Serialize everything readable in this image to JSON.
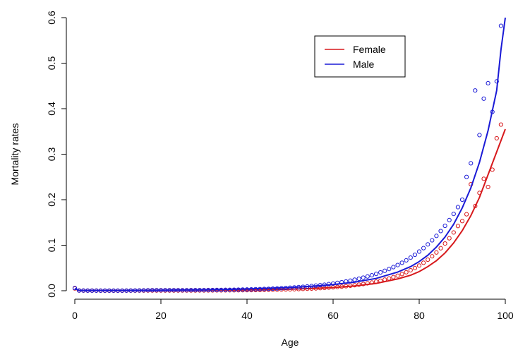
{
  "chart_data": {
    "type": "scatter",
    "xlabel": "Age",
    "ylabel": "Mortality rates",
    "xlim": [
      0,
      100
    ],
    "ylim": [
      0,
      0.6
    ],
    "xticks": [
      0,
      20,
      40,
      60,
      80,
      100
    ],
    "yticks": [
      0.0,
      0.1,
      0.2,
      0.3,
      0.4,
      0.5,
      0.6
    ],
    "ytick_labels": [
      "0.0",
      "0.1",
      "0.2",
      "0.3",
      "0.4",
      "0.5",
      "0.6"
    ],
    "legend_position": "top-right",
    "series": [
      {
        "name": "Female",
        "color": "#d7191c",
        "points": [
          [
            0,
            0.005
          ],
          [
            1,
            0.0004
          ],
          [
            2,
            0.0003
          ],
          [
            3,
            0.0002
          ],
          [
            4,
            0.0002
          ],
          [
            5,
            0.0002
          ],
          [
            6,
            0.0001
          ],
          [
            7,
            0.0001
          ],
          [
            8,
            0.0001
          ],
          [
            9,
            0.0001
          ],
          [
            10,
            0.0001
          ],
          [
            11,
            0.0001
          ],
          [
            12,
            0.0002
          ],
          [
            13,
            0.0002
          ],
          [
            14,
            0.0002
          ],
          [
            15,
            0.0003
          ],
          [
            16,
            0.0003
          ],
          [
            17,
            0.0004
          ],
          [
            18,
            0.0004
          ],
          [
            19,
            0.0004
          ],
          [
            20,
            0.0004
          ],
          [
            21,
            0.0004
          ],
          [
            22,
            0.0004
          ],
          [
            23,
            0.0004
          ],
          [
            24,
            0.0004
          ],
          [
            25,
            0.0005
          ],
          [
            26,
            0.0005
          ],
          [
            27,
            0.0005
          ],
          [
            28,
            0.0005
          ],
          [
            29,
            0.0006
          ],
          [
            30,
            0.0006
          ],
          [
            31,
            0.0007
          ],
          [
            32,
            0.0007
          ],
          [
            33,
            0.0008
          ],
          [
            34,
            0.0008
          ],
          [
            35,
            0.0009
          ],
          [
            36,
            0.001
          ],
          [
            37,
            0.001
          ],
          [
            38,
            0.0011
          ],
          [
            39,
            0.0012
          ],
          [
            40,
            0.0013
          ],
          [
            41,
            0.0014
          ],
          [
            42,
            0.0015
          ],
          [
            43,
            0.0017
          ],
          [
            44,
            0.0018
          ],
          [
            45,
            0.002
          ],
          [
            46,
            0.0022
          ],
          [
            47,
            0.0024
          ],
          [
            48,
            0.0026
          ],
          [
            49,
            0.0028
          ],
          [
            50,
            0.003
          ],
          [
            51,
            0.0033
          ],
          [
            52,
            0.0036
          ],
          [
            53,
            0.004
          ],
          [
            54,
            0.0044
          ],
          [
            55,
            0.0048
          ],
          [
            56,
            0.0052
          ],
          [
            57,
            0.0057
          ],
          [
            58,
            0.0062
          ],
          [
            59,
            0.0068
          ],
          [
            60,
            0.0075
          ],
          [
            61,
            0.0082
          ],
          [
            62,
            0.009
          ],
          [
            63,
            0.0099
          ],
          [
            64,
            0.011
          ],
          [
            65,
            0.0121
          ],
          [
            66,
            0.0134
          ],
          [
            67,
            0.0147
          ],
          [
            68,
            0.0163
          ],
          [
            69,
            0.018
          ],
          [
            70,
            0.0199
          ],
          [
            71,
            0.022
          ],
          [
            72,
            0.0244
          ],
          [
            73,
            0.027
          ],
          [
            74,
            0.0299
          ],
          [
            75,
            0.033
          ],
          [
            76,
            0.0366
          ],
          [
            77,
            0.0406
          ],
          [
            78,
            0.045
          ],
          [
            79,
            0.0499
          ],
          [
            80,
            0.0553
          ],
          [
            81,
            0.0614
          ],
          [
            82,
            0.0682
          ],
          [
            83,
            0.0757
          ],
          [
            84,
            0.0841
          ],
          [
            85,
            0.0934
          ],
          [
            86,
            0.1037
          ],
          [
            87,
            0.1153
          ],
          [
            88,
            0.128
          ],
          [
            89,
            0.1422
          ],
          [
            90,
            0.153
          ],
          [
            91,
            0.168
          ],
          [
            92,
            0.234
          ],
          [
            93,
            0.186
          ],
          [
            94,
            0.215
          ],
          [
            95,
            0.246
          ],
          [
            96,
            0.228
          ],
          [
            97,
            0.266
          ],
          [
            98,
            0.335
          ],
          [
            99,
            0.365
          ]
        ],
        "fit": [
          [
            0,
            0.004
          ],
          [
            1,
            0.0006
          ],
          [
            5,
            0.0003
          ],
          [
            10,
            0.0003
          ],
          [
            20,
            0.0006
          ],
          [
            30,
            0.001
          ],
          [
            40,
            0.0018
          ],
          [
            50,
            0.0035
          ],
          [
            55,
            0.0049
          ],
          [
            60,
            0.007
          ],
          [
            65,
            0.0105
          ],
          [
            70,
            0.016
          ],
          [
            75,
            0.026
          ],
          [
            78,
            0.034
          ],
          [
            80,
            0.042
          ],
          [
            82,
            0.053
          ],
          [
            84,
            0.066
          ],
          [
            86,
            0.083
          ],
          [
            88,
            0.105
          ],
          [
            90,
            0.132
          ],
          [
            92,
            0.165
          ],
          [
            94,
            0.205
          ],
          [
            96,
            0.255
          ],
          [
            98,
            0.305
          ],
          [
            100,
            0.355
          ]
        ]
      },
      {
        "name": "Male",
        "color": "#1a1ad6",
        "points": [
          [
            0,
            0.006
          ],
          [
            1,
            0.0005
          ],
          [
            2,
            0.0004
          ],
          [
            3,
            0.0003
          ],
          [
            4,
            0.0002
          ],
          [
            5,
            0.0002
          ],
          [
            6,
            0.0002
          ],
          [
            7,
            0.0002
          ],
          [
            8,
            0.0002
          ],
          [
            9,
            0.0002
          ],
          [
            10,
            0.0002
          ],
          [
            11,
            0.0002
          ],
          [
            12,
            0.0003
          ],
          [
            13,
            0.0004
          ],
          [
            14,
            0.0005
          ],
          [
            15,
            0.0007
          ],
          [
            16,
            0.0009
          ],
          [
            17,
            0.0011
          ],
          [
            18,
            0.0012
          ],
          [
            19,
            0.0012
          ],
          [
            20,
            0.0012
          ],
          [
            21,
            0.0012
          ],
          [
            22,
            0.0012
          ],
          [
            23,
            0.0012
          ],
          [
            24,
            0.0012
          ],
          [
            25,
            0.0012
          ],
          [
            26,
            0.0012
          ],
          [
            27,
            0.0013
          ],
          [
            28,
            0.0013
          ],
          [
            29,
            0.0014
          ],
          [
            30,
            0.0014
          ],
          [
            31,
            0.0015
          ],
          [
            32,
            0.0016
          ],
          [
            33,
            0.0017
          ],
          [
            34,
            0.0018
          ],
          [
            35,
            0.0019
          ],
          [
            36,
            0.002
          ],
          [
            37,
            0.0022
          ],
          [
            38,
            0.0024
          ],
          [
            39,
            0.0026
          ],
          [
            40,
            0.0028
          ],
          [
            41,
            0.003
          ],
          [
            42,
            0.0033
          ],
          [
            43,
            0.0036
          ],
          [
            44,
            0.0039
          ],
          [
            45,
            0.0042
          ],
          [
            46,
            0.0046
          ],
          [
            47,
            0.005
          ],
          [
            48,
            0.0055
          ],
          [
            49,
            0.006
          ],
          [
            50,
            0.0066
          ],
          [
            51,
            0.0072
          ],
          [
            52,
            0.0079
          ],
          [
            53,
            0.0086
          ],
          [
            54,
            0.0094
          ],
          [
            55,
            0.0103
          ],
          [
            56,
            0.0112
          ],
          [
            57,
            0.0122
          ],
          [
            58,
            0.0133
          ],
          [
            59,
            0.0145
          ],
          [
            60,
            0.0158
          ],
          [
            61,
            0.0172
          ],
          [
            62,
            0.0187
          ],
          [
            63,
            0.0204
          ],
          [
            64,
            0.0222
          ],
          [
            65,
            0.0242
          ],
          [
            66,
            0.0264
          ],
          [
            67,
            0.0287
          ],
          [
            68,
            0.0313
          ],
          [
            69,
            0.034
          ],
          [
            70,
            0.037
          ],
          [
            71,
            0.0403
          ],
          [
            72,
            0.0438
          ],
          [
            73,
            0.0477
          ],
          [
            74,
            0.0519
          ],
          [
            75,
            0.0564
          ],
          [
            76,
            0.0614
          ],
          [
            77,
            0.0668
          ],
          [
            78,
            0.0727
          ],
          [
            79,
            0.079
          ],
          [
            80,
            0.086
          ],
          [
            81,
            0.0936
          ],
          [
            82,
            0.1018
          ],
          [
            83,
            0.1108
          ],
          [
            84,
            0.1205
          ],
          [
            85,
            0.1311
          ],
          [
            86,
            0.1426
          ],
          [
            87,
            0.1552
          ],
          [
            88,
            0.1688
          ],
          [
            89,
            0.1837
          ],
          [
            90,
            0.2
          ],
          [
            91,
            0.25
          ],
          [
            92,
            0.28
          ],
          [
            93,
            0.44
          ],
          [
            94,
            0.342
          ],
          [
            95,
            0.422
          ],
          [
            96,
            0.456
          ],
          [
            97,
            0.393
          ],
          [
            98,
            0.46
          ],
          [
            99,
            0.582
          ]
        ],
        "fit": [
          [
            0,
            0.005
          ],
          [
            1,
            0.0008
          ],
          [
            5,
            0.0005
          ],
          [
            10,
            0.0006
          ],
          [
            20,
            0.0011
          ],
          [
            30,
            0.002
          ],
          [
            40,
            0.0038
          ],
          [
            50,
            0.0072
          ],
          [
            55,
            0.0098
          ],
          [
            60,
            0.0135
          ],
          [
            65,
            0.0188
          ],
          [
            70,
            0.027
          ],
          [
            75,
            0.041
          ],
          [
            78,
            0.053
          ],
          [
            80,
            0.064
          ],
          [
            82,
            0.078
          ],
          [
            84,
            0.096
          ],
          [
            86,
            0.118
          ],
          [
            88,
            0.146
          ],
          [
            90,
            0.182
          ],
          [
            92,
            0.226
          ],
          [
            94,
            0.282
          ],
          [
            96,
            0.352
          ],
          [
            98,
            0.44
          ],
          [
            99,
            0.53
          ],
          [
            100,
            0.6
          ]
        ]
      }
    ]
  }
}
